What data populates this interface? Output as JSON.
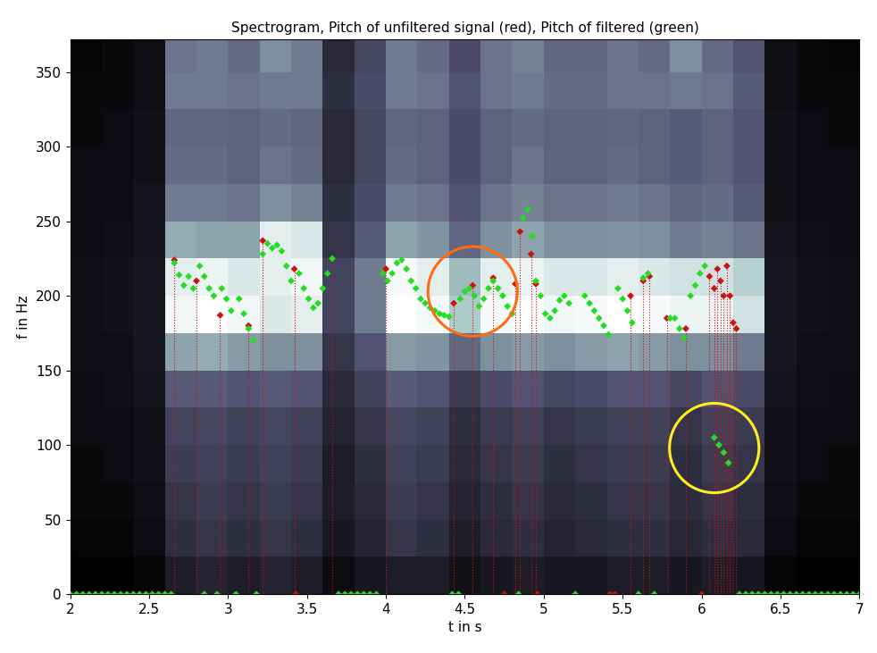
{
  "chart_data": {
    "type": "scatter",
    "title": "Spectrogram, Pitch of unfiltered signal (red), Pitch of filtered (green)",
    "x_label": "t in s",
    "y_label": "f in Hz",
    "xlim": [
      2,
      7
    ],
    "xticks": [
      2,
      2.5,
      3,
      3.5,
      4,
      4.5,
      5,
      5.5,
      6,
      6.5,
      7
    ],
    "ylim": [
      0,
      372
    ],
    "yticks": [
      0,
      50,
      100,
      150,
      200,
      250,
      300,
      350
    ],
    "grid": false,
    "spectrogram": {
      "t_edges": [
        2.0,
        2.2,
        2.4,
        2.6,
        2.8,
        3.0,
        3.2,
        3.4,
        3.6,
        3.8,
        4.0,
        4.2,
        4.4,
        4.6,
        4.8,
        5.0,
        5.2,
        5.4,
        5.6,
        5.8,
        6.0,
        6.2,
        6.4,
        6.6,
        6.8,
        7.0
      ],
      "f_edges": [
        0,
        25,
        50,
        75,
        100,
        125,
        150,
        175,
        200,
        225,
        250,
        275,
        300,
        325,
        350,
        375
      ],
      "cells": [
        [
          0.12,
          0.12,
          0.14,
          0.22,
          0.24,
          0.22,
          0.24,
          0.22,
          0.16,
          0.2,
          0.22,
          0.22,
          0.18,
          0.2,
          0.22,
          0.2,
          0.2,
          0.22,
          0.22,
          0.2,
          0.22,
          0.2,
          0.14,
          0.12,
          0.12
        ],
        [
          0.14,
          0.14,
          0.16,
          0.28,
          0.3,
          0.28,
          0.3,
          0.28,
          0.2,
          0.24,
          0.3,
          0.28,
          0.22,
          0.26,
          0.28,
          0.24,
          0.26,
          0.28,
          0.28,
          0.25,
          0.28,
          0.26,
          0.16,
          0.14,
          0.14
        ],
        [
          0.15,
          0.15,
          0.17,
          0.3,
          0.32,
          0.3,
          0.32,
          0.3,
          0.22,
          0.26,
          0.32,
          0.3,
          0.24,
          0.28,
          0.3,
          0.26,
          0.28,
          0.3,
          0.3,
          0.27,
          0.3,
          0.28,
          0.17,
          0.15,
          0.15
        ],
        [
          0.15,
          0.16,
          0.18,
          0.33,
          0.34,
          0.32,
          0.34,
          0.32,
          0.22,
          0.28,
          0.34,
          0.32,
          0.26,
          0.3,
          0.32,
          0.28,
          0.3,
          0.32,
          0.32,
          0.28,
          0.32,
          0.3,
          0.18,
          0.16,
          0.15
        ],
        [
          0.16,
          0.16,
          0.18,
          0.35,
          0.36,
          0.34,
          0.36,
          0.34,
          0.24,
          0.3,
          0.36,
          0.34,
          0.28,
          0.32,
          0.34,
          0.3,
          0.32,
          0.34,
          0.34,
          0.3,
          0.34,
          0.32,
          0.18,
          0.16,
          0.16
        ],
        [
          0.16,
          0.17,
          0.19,
          0.42,
          0.42,
          0.4,
          0.42,
          0.4,
          0.26,
          0.34,
          0.42,
          0.4,
          0.32,
          0.38,
          0.4,
          0.36,
          0.38,
          0.4,
          0.4,
          0.36,
          0.4,
          0.38,
          0.19,
          0.17,
          0.16
        ],
        [
          0.17,
          0.17,
          0.2,
          0.6,
          0.62,
          0.58,
          0.55,
          0.55,
          0.3,
          0.4,
          0.58,
          0.56,
          0.45,
          0.55,
          0.58,
          0.55,
          0.58,
          0.6,
          0.58,
          0.55,
          0.55,
          0.5,
          0.2,
          0.17,
          0.17
        ],
        [
          0.17,
          0.18,
          0.2,
          0.85,
          0.88,
          0.85,
          0.8,
          0.82,
          0.35,
          0.5,
          0.88,
          0.86,
          0.7,
          0.86,
          0.88,
          0.85,
          0.86,
          0.88,
          0.86,
          0.84,
          0.84,
          0.78,
          0.2,
          0.18,
          0.17
        ],
        [
          0.17,
          0.18,
          0.2,
          0.82,
          0.84,
          0.8,
          0.82,
          0.85,
          0.35,
          0.5,
          0.86,
          0.82,
          0.66,
          0.82,
          0.84,
          0.8,
          0.8,
          0.82,
          0.8,
          0.78,
          0.78,
          0.72,
          0.2,
          0.18,
          0.17
        ],
        [
          0.16,
          0.17,
          0.19,
          0.62,
          0.6,
          0.6,
          0.82,
          0.8,
          0.3,
          0.42,
          0.6,
          0.56,
          0.45,
          0.55,
          0.6,
          0.55,
          0.55,
          0.56,
          0.55,
          0.5,
          0.52,
          0.48,
          0.19,
          0.17,
          0.16
        ],
        [
          0.16,
          0.16,
          0.19,
          0.5,
          0.5,
          0.48,
          0.55,
          0.52,
          0.28,
          0.38,
          0.5,
          0.48,
          0.4,
          0.48,
          0.52,
          0.48,
          0.48,
          0.5,
          0.48,
          0.45,
          0.46,
          0.42,
          0.18,
          0.16,
          0.16
        ],
        [
          0.16,
          0.16,
          0.18,
          0.46,
          0.46,
          0.44,
          0.48,
          0.46,
          0.26,
          0.36,
          0.46,
          0.44,
          0.38,
          0.44,
          0.48,
          0.44,
          0.44,
          0.46,
          0.44,
          0.42,
          0.44,
          0.4,
          0.18,
          0.16,
          0.16
        ],
        [
          0.15,
          0.16,
          0.18,
          0.45,
          0.45,
          0.44,
          0.46,
          0.45,
          0.26,
          0.36,
          0.45,
          0.44,
          0.38,
          0.44,
          0.46,
          0.44,
          0.44,
          0.45,
          0.44,
          0.42,
          0.44,
          0.4,
          0.18,
          0.16,
          0.15
        ],
        [
          0.15,
          0.15,
          0.17,
          0.5,
          0.5,
          0.48,
          0.5,
          0.5,
          0.28,
          0.38,
          0.5,
          0.48,
          0.4,
          0.48,
          0.5,
          0.46,
          0.46,
          0.48,
          0.48,
          0.5,
          0.48,
          0.42,
          0.17,
          0.15,
          0.15
        ],
        [
          0.14,
          0.15,
          0.17,
          0.48,
          0.5,
          0.46,
          0.55,
          0.5,
          0.26,
          0.36,
          0.5,
          0.46,
          0.38,
          0.48,
          0.52,
          0.45,
          0.45,
          0.48,
          0.46,
          0.55,
          0.46,
          0.4,
          0.17,
          0.15,
          0.14
        ]
      ]
    },
    "series": [
      {
        "color": "#cc1111",
        "marker": "diamond",
        "line_style": "dotted",
        "x": [
          2.66,
          2.8,
          2.95,
          3.13,
          3.22,
          3.42,
          3.66,
          4.0,
          4.43,
          4.55,
          4.68,
          4.82,
          4.85,
          4.92,
          4.95,
          5.55,
          5.63,
          5.67,
          5.78,
          5.9,
          6.05,
          6.08,
          6.1,
          6.12,
          6.14,
          6.16,
          6.18,
          6.2,
          6.22,
          2.85,
          3.43,
          4.75,
          4.96,
          5.42,
          5.45,
          6.0
        ],
        "values": [
          224,
          210,
          187,
          180,
          237,
          218,
          225,
          218,
          195,
          207,
          212,
          208,
          243,
          228,
          208,
          200,
          210,
          213,
          185,
          178,
          213,
          205,
          218,
          210,
          200,
          220,
          200,
          182,
          178,
          0,
          0,
          0,
          0,
          0,
          0,
          0
        ]
      },
      {
        "color": "#22dd22",
        "marker": "diamond",
        "x": [
          2.66,
          2.69,
          2.72,
          2.75,
          2.78,
          2.82,
          2.85,
          2.88,
          2.91,
          2.96,
          2.99,
          3.02,
          3.07,
          3.1,
          3.13,
          3.16,
          3.22,
          3.25,
          3.28,
          3.31,
          3.34,
          3.37,
          3.4,
          3.45,
          3.48,
          3.51,
          3.54,
          3.57,
          3.6,
          3.63,
          3.66,
          3.98,
          4.01,
          4.04,
          4.07,
          4.1,
          4.13,
          4.16,
          4.19,
          4.22,
          4.25,
          4.28,
          4.31,
          4.34,
          4.37,
          4.4,
          4.47,
          4.5,
          4.53,
          4.56,
          4.59,
          4.62,
          4.65,
          4.68,
          4.71,
          4.74,
          4.77,
          4.8,
          4.87,
          4.9,
          4.93,
          4.95,
          4.98,
          5.01,
          5.04,
          5.07,
          5.1,
          5.13,
          5.16,
          5.26,
          5.29,
          5.32,
          5.35,
          5.38,
          5.41,
          5.47,
          5.5,
          5.53,
          5.56,
          5.63,
          5.66,
          5.8,
          5.83,
          5.86,
          5.89,
          5.93,
          5.96,
          5.99,
          6.02,
          6.08,
          6.11,
          6.14,
          6.17,
          2.0,
          2.04,
          2.08,
          2.12,
          2.16,
          2.2,
          2.24,
          2.28,
          2.32,
          2.36,
          2.4,
          2.44,
          2.48,
          2.52,
          2.56,
          2.6,
          2.64,
          2.85,
          2.93,
          3.05,
          3.18,
          3.7,
          3.74,
          3.78,
          3.82,
          3.86,
          3.9,
          3.94,
          4.42,
          4.46,
          4.84,
          5.2,
          5.6,
          5.7,
          6.24,
          6.28,
          6.32,
          6.36,
          6.4,
          6.44,
          6.48,
          6.52,
          6.56,
          6.6,
          6.64,
          6.68,
          6.72,
          6.76,
          6.8,
          6.84,
          6.88,
          6.92,
          6.96,
          7.0
        ],
        "values": [
          222,
          214,
          207,
          213,
          205,
          220,
          213,
          205,
          200,
          205,
          198,
          190,
          198,
          188,
          178,
          170,
          228,
          235,
          232,
          234,
          230,
          220,
          210,
          215,
          205,
          198,
          192,
          195,
          205,
          215,
          225,
          215,
          210,
          215,
          222,
          224,
          218,
          210,
          205,
          198,
          195,
          192,
          190,
          188,
          187,
          186,
          198,
          203,
          205,
          200,
          193,
          198,
          205,
          210,
          205,
          200,
          193,
          188,
          252,
          258,
          240,
          210,
          200,
          188,
          185,
          190,
          197,
          200,
          195,
          200,
          195,
          190,
          185,
          180,
          174,
          205,
          198,
          190,
          182,
          212,
          215,
          185,
          185,
          178,
          172,
          200,
          207,
          215,
          220,
          105,
          100,
          95,
          88,
          0,
          0,
          0,
          0,
          0,
          0,
          0,
          0,
          0,
          0,
          0,
          0,
          0,
          0,
          0,
          0,
          0,
          0,
          0,
          0,
          0,
          0,
          0,
          0,
          0,
          0,
          0,
          0,
          0,
          0,
          0,
          0,
          0,
          0,
          0,
          0,
          0,
          0,
          0,
          0,
          0,
          0,
          0,
          0,
          0,
          0,
          0,
          0,
          0,
          0,
          0,
          0,
          0,
          0
        ]
      }
    ],
    "highlights": [
      {
        "x": 4.55,
        "y": 203,
        "color": "#ff6a13"
      },
      {
        "x": 6.08,
        "y": 98,
        "color": "#ffee22"
      }
    ]
  }
}
